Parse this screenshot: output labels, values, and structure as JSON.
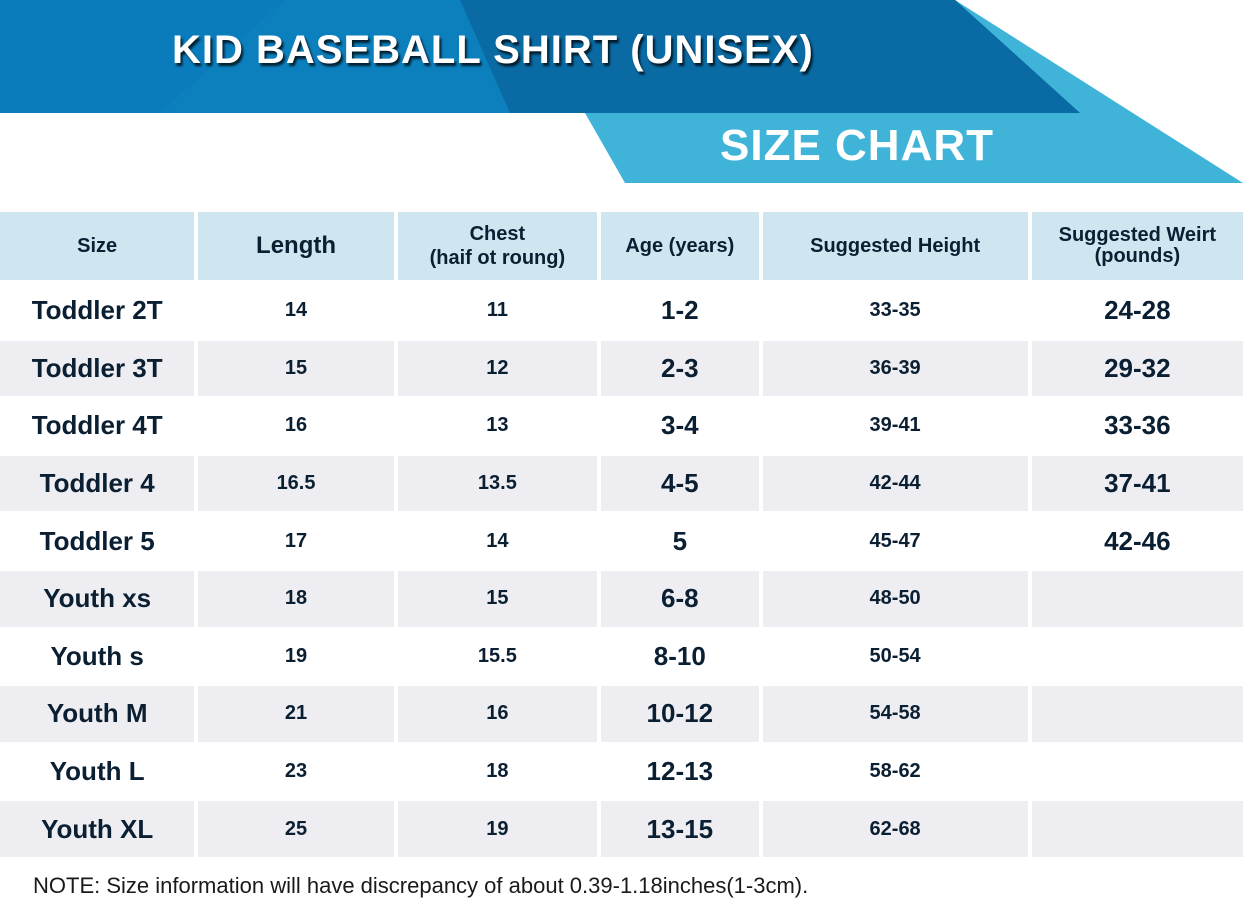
{
  "banner": {
    "title": "KID BASEBALL SHIRT (UNISEX)",
    "subtitle": "SIZE CHART",
    "colors": {
      "dark_blue": "#0a6aa3",
      "mid_blue": "#0c7fbd",
      "light_blue": "#3fb4d8"
    }
  },
  "table": {
    "headers": [
      "Size",
      "Length",
      "Chest\n(haif ot roung)",
      "Age (years)",
      "Suggested Height",
      "Suggested Weirt\n(pounds)"
    ],
    "rows": [
      [
        "Toddler 2T",
        "14",
        "11",
        "1-2",
        "33-35",
        "24-28"
      ],
      [
        "Toddler 3T",
        "15",
        "12",
        "2-3",
        "36-39",
        "29-32"
      ],
      [
        "Toddler 4T",
        "16",
        "13",
        "3-4",
        "39-41",
        "33-36"
      ],
      [
        "Toddler 4",
        "16.5",
        "13.5",
        "4-5",
        "42-44",
        "37-41"
      ],
      [
        "Toddler 5",
        "17",
        "14",
        "5",
        "45-47",
        "42-46"
      ],
      [
        "Youth xs",
        "18",
        "15",
        "6-8",
        "48-50",
        ""
      ],
      [
        "Youth s",
        "19",
        "15.5",
        "8-10",
        "50-54",
        ""
      ],
      [
        "Youth M",
        "21",
        "16",
        "10-12",
        "54-58",
        ""
      ],
      [
        "Youth L",
        "23",
        "18",
        "12-13",
        "58-62",
        ""
      ],
      [
        "Youth XL",
        "25",
        "19",
        "13-15",
        "62-68",
        ""
      ]
    ],
    "header_color": "#cfe6f1",
    "shade_color": "#eeeef2"
  },
  "note": "NOTE: Size information will have discrepancy of about 0.39-1.18inches(1-3cm)."
}
